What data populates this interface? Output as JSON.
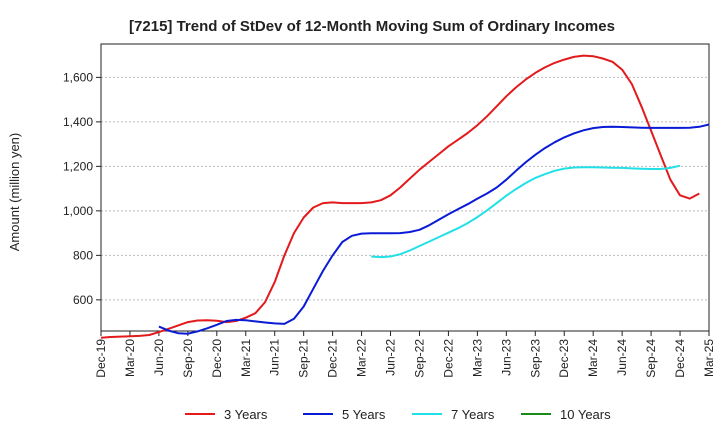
{
  "chart_data": {
    "type": "line",
    "title": "[7215]  Trend of StDev of 12-Month Moving Sum of Ordinary Incomes",
    "xlabel": "",
    "ylabel": "Amount (million yen)",
    "ylim": [
      460,
      1750
    ],
    "yticks": [
      600,
      800,
      1000,
      1200,
      1400,
      1600
    ],
    "ytick_labels": [
      "600",
      "800",
      "1,000",
      "1,200",
      "1,400",
      "1,600"
    ],
    "x_tick_labels": [
      "Dec-19",
      "Mar-20",
      "Jun-20",
      "Sep-20",
      "Dec-20",
      "Mar-21",
      "Jun-21",
      "Sep-21",
      "Dec-21",
      "Mar-22",
      "Jun-22",
      "Sep-22",
      "Dec-22",
      "Mar-23",
      "Jun-23",
      "Sep-23",
      "Dec-23",
      "Mar-24",
      "Jun-24",
      "Sep-24",
      "Dec-24",
      "Mar-25"
    ],
    "grid": true,
    "legend_position": "bottom",
    "series": [
      {
        "name": "3 Years",
        "color": "#e31a1c",
        "start_index": 0,
        "values": [
          430,
          433,
          435,
          436,
          438,
          442,
          455,
          470,
          485,
          500,
          507,
          508,
          506,
          500,
          505,
          520,
          540,
          590,
          680,
          800,
          900,
          970,
          1015,
          1035,
          1038,
          1035,
          1035,
          1035,
          1038,
          1048,
          1070,
          1105,
          1145,
          1185,
          1220,
          1255,
          1290,
          1320,
          1350,
          1385,
          1425,
          1470,
          1515,
          1555,
          1590,
          1620,
          1645,
          1665,
          1680,
          1692,
          1698,
          1695,
          1685,
          1670,
          1635,
          1570,
          1470,
          1360,
          1250,
          1140,
          1070,
          1055,
          1078
        ]
      },
      {
        "name": "5 Years",
        "color": "#0a1bd6",
        "start_index": 6,
        "values": [
          480,
          462,
          450,
          448,
          458,
          472,
          488,
          505,
          510,
          508,
          503,
          498,
          494,
          492,
          515,
          570,
          650,
          730,
          800,
          860,
          888,
          898,
          899,
          899,
          899,
          900,
          905,
          915,
          935,
          960,
          985,
          1008,
          1030,
          1055,
          1078,
          1105,
          1140,
          1180,
          1218,
          1252,
          1282,
          1308,
          1330,
          1348,
          1362,
          1372,
          1377,
          1378,
          1377,
          1375,
          1374,
          1373,
          1373,
          1373,
          1373,
          1374,
          1378,
          1388
        ]
      },
      {
        "name": "7 Years",
        "color": "#22e0e6",
        "start_index": 28,
        "values": [
          795,
          792,
          795,
          805,
          822,
          842,
          862,
          882,
          902,
          922,
          945,
          972,
          1002,
          1035,
          1068,
          1098,
          1125,
          1148,
          1165,
          1180,
          1190,
          1195,
          1196,
          1196,
          1195,
          1194,
          1193,
          1191,
          1189,
          1188,
          1188,
          1193,
          1203
        ]
      },
      {
        "name": "10 Years",
        "color": "#1a8a1a",
        "start_index": 0,
        "values": []
      }
    ]
  }
}
